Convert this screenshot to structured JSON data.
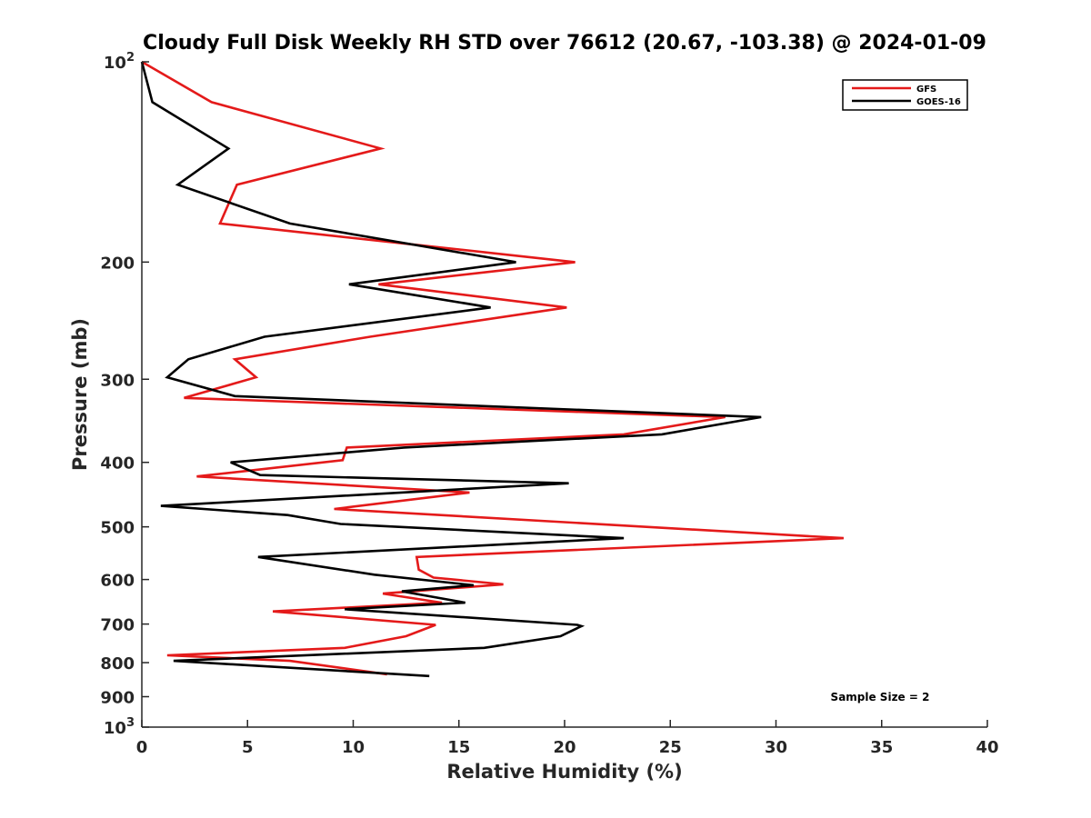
{
  "chart_data": {
    "type": "line",
    "title": "Cloudy Full Disk Weekly RH STD over 76612 (20.67, -103.38) @ 2024-01-09",
    "xlabel": "Relative Humidity (%)",
    "ylabel": "Pressure (mb)",
    "xlim": [
      0,
      40
    ],
    "ylim": [
      100,
      1000
    ],
    "yscale": "log",
    "y_reversed": true,
    "grid": false,
    "legend_position": "top-right",
    "x_ticks": [
      {
        "value": 0,
        "label": "0"
      },
      {
        "value": 5,
        "label": "5"
      },
      {
        "value": 10,
        "label": "10"
      },
      {
        "value": 15,
        "label": "15"
      },
      {
        "value": 20,
        "label": "20"
      },
      {
        "value": 25,
        "label": "25"
      },
      {
        "value": 30,
        "label": "30"
      },
      {
        "value": 35,
        "label": "35"
      },
      {
        "value": 40,
        "label": "40"
      }
    ],
    "y_ticks": [
      {
        "value": 100,
        "base": "10",
        "exp": "2"
      },
      {
        "value": 200,
        "label": "200"
      },
      {
        "value": 300,
        "label": "300"
      },
      {
        "value": 400,
        "label": "400"
      },
      {
        "value": 500,
        "label": "500"
      },
      {
        "value": 600,
        "label": "600"
      },
      {
        "value": 700,
        "label": "700"
      },
      {
        "value": 800,
        "label": "800"
      },
      {
        "value": 900,
        "label": "900"
      },
      {
        "value": 1000,
        "base": "10",
        "exp": "3"
      }
    ],
    "annotation": "Sample Size = 2",
    "series": [
      {
        "name": "GFS",
        "color": "#e41a1a",
        "points": [
          [
            0.0,
            100
          ],
          [
            3.3,
            115
          ],
          [
            11.3,
            135
          ],
          [
            4.5,
            153
          ],
          [
            3.7,
            175
          ],
          [
            20.5,
            200
          ],
          [
            11.2,
            216
          ],
          [
            20.1,
            234
          ],
          [
            10.8,
            259
          ],
          [
            4.4,
            280
          ],
          [
            5.4,
            298
          ],
          [
            2.0,
            320
          ],
          [
            27.6,
            342
          ],
          [
            22.8,
            363
          ],
          [
            9.7,
            380
          ],
          [
            9.5,
            397
          ],
          [
            2.6,
            420
          ],
          [
            15.5,
            444
          ],
          [
            9.1,
            470
          ],
          [
            33.2,
            520
          ],
          [
            13.0,
            555
          ],
          [
            13.1,
            580
          ],
          [
            13.8,
            596
          ],
          [
            17.1,
            610
          ],
          [
            11.4,
            630
          ],
          [
            14.2,
            650
          ],
          [
            6.2,
            670
          ],
          [
            13.9,
            702
          ],
          [
            12.5,
            730
          ],
          [
            9.6,
            760
          ],
          [
            1.2,
            780
          ],
          [
            7.0,
            795
          ],
          [
            11.6,
            833
          ]
        ]
      },
      {
        "name": "GOES-16",
        "color": "#000000",
        "points": [
          [
            0.0,
            100
          ],
          [
            0.5,
            115
          ],
          [
            4.1,
            135
          ],
          [
            1.7,
            153
          ],
          [
            7.0,
            175
          ],
          [
            17.7,
            200
          ],
          [
            9.8,
            216
          ],
          [
            16.5,
            234
          ],
          [
            5.8,
            259
          ],
          [
            2.2,
            280
          ],
          [
            1.2,
            298
          ],
          [
            4.4,
            318
          ],
          [
            29.3,
            342
          ],
          [
            24.6,
            363
          ],
          [
            12.4,
            380
          ],
          [
            4.2,
            400
          ],
          [
            5.6,
            418
          ],
          [
            20.2,
            430
          ],
          [
            0.9,
            465
          ],
          [
            6.9,
            480
          ],
          [
            9.4,
            495
          ],
          [
            22.8,
            520
          ],
          [
            5.5,
            555
          ],
          [
            11.0,
            590
          ],
          [
            15.7,
            612
          ],
          [
            12.3,
            625
          ],
          [
            15.3,
            650
          ],
          [
            9.6,
            665
          ],
          [
            20.6,
            702
          ],
          [
            20.8,
            705
          ],
          [
            19.8,
            730
          ],
          [
            16.2,
            760
          ],
          [
            1.5,
            795
          ],
          [
            13.6,
            838
          ]
        ]
      }
    ]
  }
}
